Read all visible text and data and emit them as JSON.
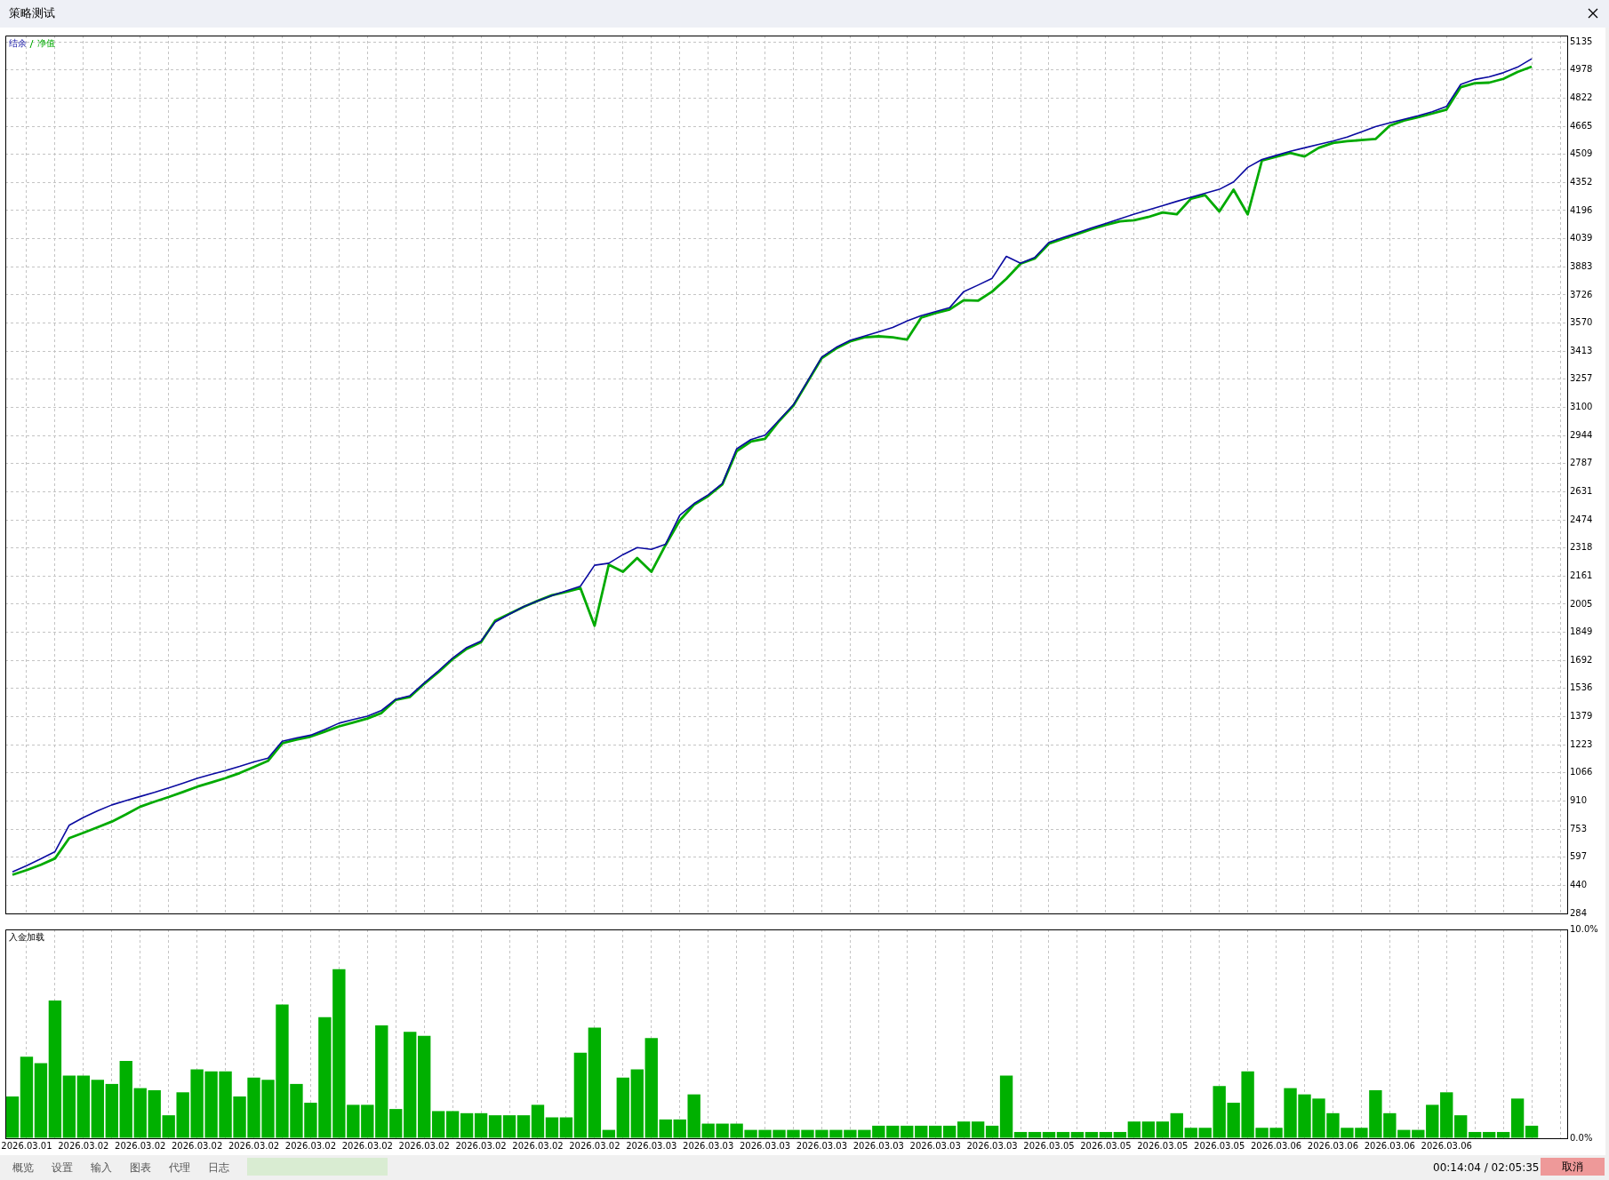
{
  "chart_data": [
    {
      "type": "line",
      "title": "策略测试",
      "legend": "top left",
      "grid": true,
      "marker": "none",
      "tick_labels": "y",
      "categories": [
        null,
        "2026.03.01",
        null,
        null,
        null,
        "2026.03.02",
        null,
        null,
        null,
        "2026.03.02",
        null,
        null,
        null,
        "2026.03.02",
        null,
        null,
        null,
        "2026.03.02",
        null,
        null,
        null,
        "2026.03.02",
        null,
        null,
        null,
        "2026.03.02",
        null,
        null,
        null,
        "2026.03.02",
        null,
        null,
        null,
        "2026.03.02",
        null,
        null,
        null,
        "2026.03.02",
        null,
        null,
        null,
        "2026.03.02",
        null,
        null,
        null,
        "2026.03.03",
        null,
        null,
        null,
        "2026.03.03",
        null,
        null,
        null,
        "2026.03.03",
        null,
        null,
        null,
        "2026.03.03",
        null,
        null,
        null,
        "2026.03.03",
        null,
        null,
        null,
        "2026.03.03",
        null,
        null,
        null,
        "2026.03.03",
        null,
        null,
        null,
        "2026.03.05",
        null,
        null,
        null,
        "2026.03.05",
        null,
        null,
        null,
        "2026.03.05",
        null,
        null,
        null,
        "2026.03.05",
        null,
        null,
        null,
        "2026.03.06",
        null,
        null,
        null,
        "2026.03.06",
        null,
        null,
        null,
        "2026.03.06",
        null,
        null,
        null,
        "2026.03.06",
        null,
        null,
        null,
        null,
        null,
        null,
        null,
        null
      ],
      "ylim": [
        284,
        5170
      ],
      "yticks": [
        284,
        440,
        597,
        753,
        910,
        1066,
        1223,
        1379,
        1536,
        1692,
        1849,
        2005,
        2161,
        2318,
        2474,
        2631,
        2787,
        2944,
        3100,
        3257,
        3413,
        3570,
        3726,
        3883,
        4039,
        4196,
        4352,
        4509,
        4665,
        4822,
        4978,
        5135
      ],
      "series": [
        {
          "name": "结余",
          "color": "#0a0aa0",
          "values": [
            515,
            550,
            588,
            628,
            775,
            818,
            855,
            888,
            912,
            935,
            958,
            983,
            1009,
            1036,
            1058,
            1079,
            1102,
            1127,
            1148,
            1242,
            1261,
            1276,
            1308,
            1343,
            1363,
            1382,
            1414,
            1476,
            1496,
            1567,
            1634,
            1705,
            1764,
            1800,
            1906,
            1949,
            1991,
            2024,
            2053,
            2079,
            2105,
            2222,
            2233,
            2281,
            2320,
            2310,
            2339,
            2500,
            2565,
            2614,
            2677,
            2869,
            2921,
            2946,
            3030,
            3115,
            3247,
            3380,
            3434,
            3474,
            3497,
            3521,
            3545,
            3581,
            3611,
            3633,
            3655,
            3745,
            3781,
            3819,
            3941,
            3903,
            3935,
            4019,
            4046,
            4072,
            4099,
            4124,
            4150,
            4176,
            4200,
            4223,
            4247,
            4270,
            4292,
            4314,
            4355,
            4436,
            4480,
            4503,
            4526,
            4545,
            4564,
            4583,
            4605,
            4634,
            4663,
            4684,
            4704,
            4724,
            4746,
            4776,
            4898,
            4926,
            4940,
            4963,
            4994,
            5041,
            null,
            null
          ]
        },
        {
          "name": "净值",
          "color": "#00aa00",
          "values": [
            499,
            525,
            555,
            590,
            703,
            733,
            764,
            795,
            835,
            878,
            906,
            932,
            960,
            989,
            1013,
            1037,
            1065,
            1099,
            1133,
            1231,
            1251,
            1268,
            1296,
            1325,
            1347,
            1369,
            1400,
            1473,
            1489,
            1562,
            1627,
            1699,
            1757,
            1794,
            1913,
            1952,
            1990,
            2024,
            2055,
            2073,
            2095,
            1885,
            2225,
            2185,
            2262,
            2185,
            2334,
            2471,
            2559,
            2607,
            2672,
            2856,
            2910,
            2925,
            3025,
            3110,
            3242,
            3375,
            3428,
            3468,
            3490,
            3496,
            3490,
            3478,
            3600,
            3625,
            3645,
            3697,
            3694,
            3745,
            3816,
            3900,
            3929,
            4012,
            4039,
            4065,
            4092,
            4116,
            4136,
            4142,
            4160,
            4185,
            4175,
            4262,
            4282,
            4191,
            4312,
            4175,
            4474,
            4496,
            4517,
            4497,
            4545,
            4572,
            4582,
            4588,
            4594,
            4668,
            4697,
            4716,
            4736,
            4758,
            4883,
            4905,
            4908,
            4929,
            4967,
            4997,
            null,
            null
          ]
        }
      ]
    },
    {
      "type": "bar",
      "title": "入金加载",
      "grid": true,
      "annotations": [
        "概览",
        "设置",
        "输入",
        "图表",
        "代理",
        "日志",
        "00:14:04 / 02:05:35",
        "取消"
      ],
      "categories": [
        null,
        "2026.03.01",
        null,
        null,
        null,
        "2026.03.02",
        null,
        null,
        null,
        "2026.03.02",
        null,
        null,
        null,
        "2026.03.02",
        null,
        null,
        null,
        "2026.03.02",
        null,
        null,
        null,
        "2026.03.02",
        null,
        null,
        null,
        "2026.03.02",
        null,
        null,
        null,
        "2026.03.02",
        null,
        null,
        null,
        "2026.03.02",
        null,
        null,
        null,
        "2026.03.02",
        null,
        null,
        null,
        "2026.03.02",
        null,
        null,
        null,
        "2026.03.03",
        null,
        null,
        null,
        "2026.03.03",
        null,
        null,
        null,
        "2026.03.03",
        null,
        null,
        null,
        "2026.03.03",
        null,
        null,
        null,
        "2026.03.03",
        null,
        null,
        null,
        "2026.03.03",
        null,
        null,
        null,
        "2026.03.03",
        null,
        null,
        null,
        "2026.03.05",
        null,
        null,
        null,
        "2026.03.05",
        null,
        null,
        null,
        "2026.03.05",
        null,
        null,
        null,
        "2026.03.05",
        null,
        null,
        null,
        "2026.03.06",
        null,
        null,
        null,
        "2026.03.06",
        null,
        null,
        null,
        "2026.03.06",
        null,
        null,
        null,
        "2026.03.06",
        null,
        null,
        null,
        null,
        null,
        null,
        null,
        null
      ],
      "ylim": [
        0,
        10
      ],
      "yticks": [
        {
          "value": 0,
          "label": "0.0%"
        },
        {
          "value": 10,
          "label": "10.0%"
        }
      ],
      "series": [
        {
          "color": "#00b000",
          "values": [
            2.0,
            3.9,
            3.6,
            6.6,
            3.0,
            3.0,
            2.8,
            2.6,
            3.7,
            2.4,
            2.3,
            1.1,
            2.2,
            3.3,
            3.2,
            3.2,
            2.0,
            2.9,
            2.8,
            6.4,
            2.6,
            1.7,
            5.8,
            8.1,
            1.6,
            1.6,
            5.4,
            1.4,
            5.1,
            4.9,
            1.3,
            1.3,
            1.2,
            1.2,
            1.1,
            1.1,
            1.1,
            1.6,
            1.0,
            1.0,
            4.1,
            5.3,
            0.4,
            2.9,
            3.3,
            4.8,
            0.9,
            0.9,
            2.1,
            0.7,
            0.7,
            0.7,
            0.4,
            0.4,
            0.4,
            0.4,
            0.4,
            0.4,
            0.4,
            0.4,
            0.4,
            0.6,
            0.6,
            0.6,
            0.6,
            0.6,
            0.6,
            0.8,
            0.8,
            0.6,
            3.0,
            0.3,
            0.3,
            0.3,
            0.3,
            0.3,
            0.3,
            0.3,
            0.3,
            0.8,
            0.8,
            0.8,
            1.2,
            0.5,
            0.5,
            2.5,
            1.7,
            3.2,
            0.5,
            0.5,
            2.4,
            2.1,
            1.9,
            1.2,
            0.5,
            0.5,
            2.3,
            1.2,
            0.4,
            0.4,
            1.6,
            2.2,
            1.1,
            0.3,
            0.3,
            0.3,
            1.9,
            0.6,
            null,
            null
          ]
        }
      ]
    }
  ]
}
